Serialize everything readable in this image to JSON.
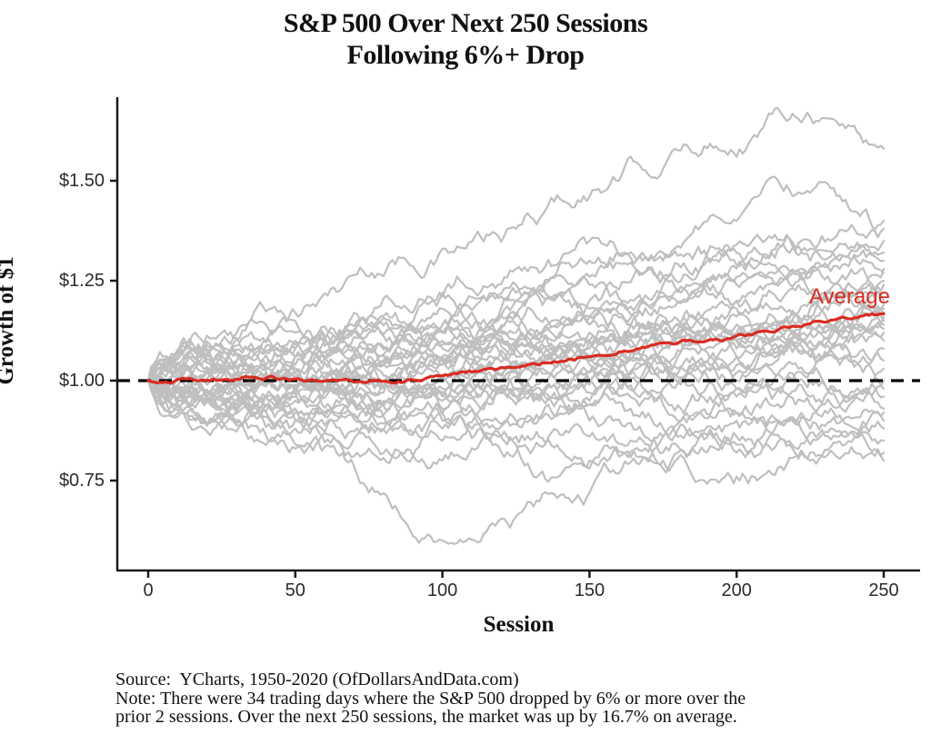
{
  "title": {
    "line1": "S&P 500 Over Next 250 Sessions",
    "line2": "Following 6%+ Drop"
  },
  "axes": {
    "x_label": "Session",
    "y_label": "Growth of $1",
    "x_ticks": [
      {
        "label": "0",
        "value": 0
      },
      {
        "label": "50",
        "value": 50
      },
      {
        "label": "100",
        "value": 100
      },
      {
        "label": "150",
        "value": 150
      },
      {
        "label": "200",
        "value": 200
      },
      {
        "label": "250",
        "value": 250
      }
    ],
    "y_ticks": [
      {
        "label": "$1.50",
        "value": 1.5
      },
      {
        "label": "$1.25",
        "value": 1.25
      },
      {
        "label": "$1.00",
        "value": 1.0
      },
      {
        "label": "$0.75",
        "value": 0.75
      }
    ]
  },
  "annotations": {
    "average_label": "Average"
  },
  "footer": {
    "line1": "Source:  YCharts, 1950-2020 (OfDollarsAndData.com)",
    "line2": "Note: There were 34 trading days where the S&P 500 dropped by 6% or more over the",
    "line3": "prior 2 sessions. Over the next 250 sessions, the market was up by 16.7% on average."
  },
  "colors": {
    "gray_line": "#bfbfbf",
    "average_line": "#d92c21",
    "baseline": "#000000",
    "axis": "#1a1a1a"
  },
  "chart_data": {
    "type": "line",
    "title": "S&P 500 Over Next 250 Sessions Following 6%+ Drop",
    "xlabel": "Session",
    "ylabel": "Growth of $1",
    "xlim": [
      0,
      250
    ],
    "ylim": [
      0.53,
      1.71
    ],
    "grid": "off",
    "legend": "none",
    "baseline": {
      "value": 1.0,
      "style": "dashed"
    },
    "gray_series_anchor_sessions": [
      0,
      25,
      50,
      75,
      100,
      125,
      150,
      175,
      200,
      225,
      250
    ],
    "gray_series": [
      [
        1.0,
        1.08,
        1.17,
        1.26,
        1.33,
        1.38,
        1.46,
        1.53,
        1.56,
        1.66,
        1.58
      ],
      [
        1.0,
        1.05,
        1.02,
        1.12,
        1.21,
        1.28,
        1.35,
        1.3,
        1.4,
        1.47,
        1.4
      ],
      [
        1.0,
        0.97,
        1.06,
        1.14,
        1.1,
        1.22,
        1.26,
        1.32,
        1.29,
        1.35,
        1.38
      ],
      [
        1.0,
        1.02,
        1.06,
        1.16,
        1.12,
        1.2,
        1.3,
        1.26,
        1.34,
        1.3,
        1.35
      ],
      [
        1.0,
        1.1,
        1.15,
        1.08,
        1.18,
        1.24,
        1.2,
        1.26,
        1.32,
        1.27,
        1.32
      ],
      [
        1.0,
        1.03,
        1.1,
        1.16,
        1.22,
        1.16,
        1.24,
        1.21,
        1.28,
        1.33,
        1.3
      ],
      [
        1.0,
        0.94,
        1.02,
        1.08,
        1.14,
        1.2,
        1.14,
        1.22,
        1.26,
        1.22,
        1.28
      ],
      [
        1.0,
        1.07,
        1.0,
        1.09,
        1.05,
        1.14,
        1.18,
        1.24,
        1.2,
        1.26,
        1.27
      ],
      [
        1.0,
        1.12,
        1.06,
        1.14,
        1.09,
        1.17,
        1.12,
        1.18,
        1.24,
        1.28,
        1.25
      ],
      [
        1.0,
        0.98,
        1.08,
        1.02,
        1.12,
        1.08,
        1.16,
        1.12,
        1.2,
        1.16,
        1.24
      ],
      [
        1.0,
        1.04,
        0.97,
        1.06,
        1.14,
        1.1,
        1.05,
        1.15,
        1.1,
        1.2,
        1.22
      ],
      [
        1.0,
        0.92,
        0.99,
        1.05,
        1.0,
        1.09,
        1.14,
        1.08,
        1.16,
        1.22,
        1.2
      ],
      [
        1.0,
        1.06,
        1.12,
        1.04,
        1.08,
        1.02,
        1.1,
        1.16,
        1.12,
        1.18,
        1.19
      ],
      [
        1.0,
        0.95,
        1.04,
        0.98,
        1.06,
        1.12,
        1.06,
        1.14,
        1.18,
        1.13,
        1.18
      ],
      [
        1.0,
        1.02,
        1.08,
        1.13,
        1.05,
        1.1,
        1.16,
        1.1,
        1.06,
        1.14,
        1.17
      ],
      [
        1.0,
        1.09,
        1.03,
        0.97,
        1.04,
        1.08,
        1.02,
        1.08,
        1.14,
        1.1,
        1.16
      ],
      [
        1.0,
        0.96,
        1.01,
        1.07,
        1.12,
        1.06,
        1.1,
        1.04,
        1.1,
        1.16,
        1.15
      ],
      [
        1.0,
        1.05,
        0.98,
        1.03,
        0.96,
        1.04,
        1.08,
        1.12,
        1.08,
        1.12,
        1.14
      ],
      [
        1.0,
        0.9,
        0.96,
        1.02,
        0.97,
        1.02,
        1.06,
        1.02,
        1.1,
        1.06,
        1.13
      ],
      [
        1.0,
        1.03,
        1.09,
        1.0,
        1.06,
        0.98,
        1.04,
        1.1,
        1.04,
        1.12,
        1.12
      ],
      [
        1.0,
        0.98,
        0.92,
        0.99,
        1.04,
        1.08,
        1.0,
        1.06,
        1.12,
        1.08,
        1.1
      ],
      [
        1.0,
        1.06,
        1.0,
        0.94,
        1.0,
        1.05,
        1.1,
        1.04,
        1.0,
        1.08,
        1.08
      ],
      [
        1.0,
        0.93,
        0.99,
        0.92,
        0.98,
        1.03,
        0.97,
        1.02,
        1.06,
        1.02,
        1.05
      ],
      [
        1.0,
        1.01,
        0.95,
        1.0,
        0.93,
        0.98,
        1.02,
        0.96,
        1.02,
        1.06,
        1.03
      ],
      [
        1.0,
        0.97,
        1.03,
        0.96,
        1.01,
        0.94,
        0.99,
        1.04,
        0.98,
        1.02,
        1.0
      ],
      [
        1.0,
        1.04,
        0.98,
        0.92,
        0.97,
        1.01,
        0.95,
        1.0,
        0.96,
        1.0,
        0.98
      ],
      [
        1.0,
        0.95,
        0.9,
        0.96,
        0.9,
        0.96,
        1.0,
        0.94,
        0.98,
        0.94,
        0.96
      ],
      [
        1.0,
        0.92,
        0.97,
        0.9,
        0.95,
        0.89,
        0.94,
        0.98,
        0.92,
        0.96,
        0.93
      ],
      [
        1.0,
        0.99,
        0.93,
        0.87,
        0.92,
        0.96,
        0.9,
        0.86,
        0.92,
        0.88,
        0.9
      ],
      [
        1.0,
        0.94,
        0.88,
        0.93,
        0.85,
        0.9,
        0.94,
        0.88,
        0.84,
        0.9,
        0.88
      ],
      [
        1.0,
        0.9,
        0.84,
        0.88,
        0.92,
        0.86,
        0.8,
        0.86,
        0.9,
        0.84,
        0.85
      ],
      [
        1.0,
        0.96,
        0.9,
        0.83,
        0.88,
        0.82,
        0.86,
        0.8,
        0.76,
        0.82,
        0.82
      ],
      [
        1.0,
        0.88,
        0.93,
        0.86,
        0.8,
        0.84,
        0.78,
        0.82,
        0.86,
        0.8,
        0.8
      ],
      [
        1.0,
        0.91,
        0.83,
        0.72,
        0.6,
        0.66,
        0.72,
        0.78,
        0.82,
        0.87,
        0.92
      ]
    ],
    "average_series": {
      "name": "Average",
      "anchor_sessions": [
        0,
        10,
        20,
        30,
        40,
        50,
        60,
        70,
        80,
        90,
        100,
        110,
        120,
        130,
        140,
        150,
        160,
        170,
        180,
        190,
        200,
        210,
        220,
        230,
        240,
        250
      ],
      "values": [
        1.0,
        1.003,
        1.001,
        1.004,
        1.006,
        1.004,
        0.999,
        0.996,
        0.998,
        1.002,
        1.012,
        1.022,
        1.033,
        1.041,
        1.048,
        1.06,
        1.072,
        1.085,
        1.094,
        1.1,
        1.112,
        1.124,
        1.135,
        1.146,
        1.157,
        1.167
      ],
      "final_return_pct": "16.7"
    }
  }
}
